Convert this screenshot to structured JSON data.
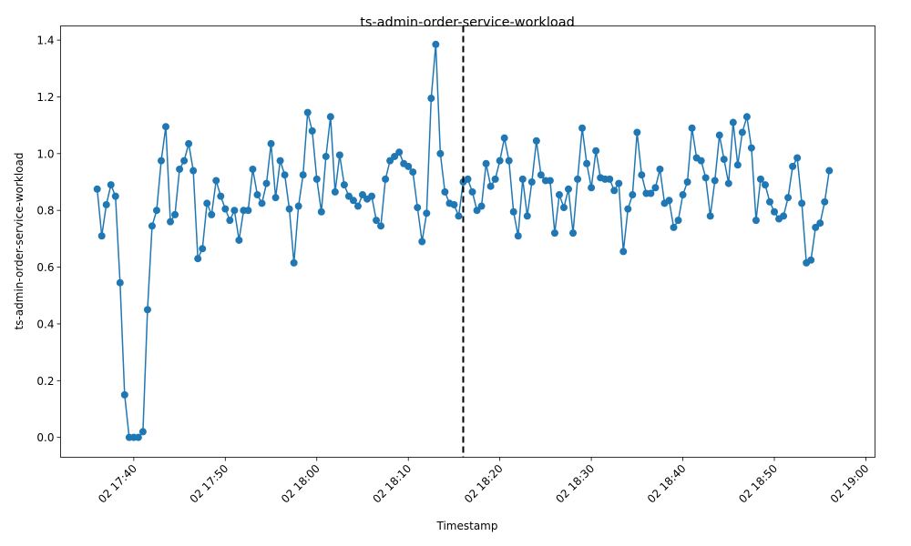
{
  "chart_data": {
    "type": "line",
    "title": "ts-admin-order-service-workload",
    "xlabel": "Timestamp",
    "ylabel": "ts-admin-order-service-workload",
    "x_start": "02 17:36",
    "x_interval_minutes": 0.5,
    "xlim": [
      "02 17:32",
      "02 19:01"
    ],
    "ylim": [
      -0.07,
      1.45
    ],
    "x_ticks": [
      "02 17:40",
      "02 17:50",
      "02 18:00",
      "02 18:10",
      "02 18:20",
      "02 18:30",
      "02 18:40",
      "02 18:50",
      "02 19:00"
    ],
    "y_ticks": [
      "0.0",
      "0.2",
      "0.4",
      "0.6",
      "0.8",
      "1.0",
      "1.2",
      "1.4"
    ],
    "marker": "circle",
    "color": "#1f77b4",
    "vline": {
      "at": "02 18:16",
      "style": "dashed",
      "color": "#000000"
    },
    "grid": false,
    "series": [
      {
        "values": [
          0.875,
          0.71,
          0.82,
          0.89,
          0.85,
          0.545,
          0.15,
          0.0,
          0.0,
          0.0,
          0.02,
          0.45,
          0.745,
          0.8,
          0.975,
          1.095,
          0.76,
          0.785,
          0.945,
          0.975,
          1.035,
          0.94,
          0.63,
          0.665,
          0.825,
          0.785,
          0.905,
          0.85,
          0.805,
          0.765,
          0.8,
          0.695,
          0.8,
          0.8,
          0.945,
          0.855,
          0.825,
          0.895,
          1.035,
          0.845,
          0.975,
          0.925,
          0.805,
          0.615,
          0.815,
          0.925,
          1.145,
          1.08,
          0.91,
          0.795,
          0.99,
          1.13,
          0.865,
          0.995,
          0.89,
          0.85,
          0.835,
          0.815,
          0.855,
          0.84,
          0.85,
          0.765,
          0.745,
          0.91,
          0.975,
          0.99,
          1.005,
          0.965,
          0.955,
          0.935,
          0.81,
          0.69,
          0.79,
          1.195,
          1.385,
          1.0,
          0.865,
          0.825,
          0.82,
          0.78,
          0.9,
          0.91,
          0.865,
          0.8,
          0.815,
          0.965,
          0.885,
          0.91,
          0.975,
          1.055,
          0.975,
          0.795,
          0.71,
          0.91,
          0.78,
          0.9,
          1.045,
          0.925,
          0.905,
          0.905,
          0.72,
          0.855,
          0.81,
          0.875,
          0.72,
          0.91,
          1.09,
          0.965,
          0.88,
          1.01,
          0.915,
          0.91,
          0.91,
          0.87,
          0.895,
          0.655,
          0.805,
          0.855,
          1.075,
          0.925,
          0.86,
          0.86,
          0.88,
          0.945,
          0.825,
          0.835,
          0.74,
          0.765,
          0.855,
          0.9,
          1.09,
          0.985,
          0.975,
          0.915,
          0.78,
          0.905,
          1.065,
          0.98,
          0.895,
          1.11,
          0.96,
          1.075,
          1.13,
          1.02,
          0.765,
          0.91,
          0.89,
          0.83,
          0.795,
          0.77,
          0.78,
          0.845,
          0.955,
          0.985,
          0.825,
          0.615,
          0.625,
          0.74,
          0.755,
          0.83,
          0.94
        ]
      }
    ]
  }
}
